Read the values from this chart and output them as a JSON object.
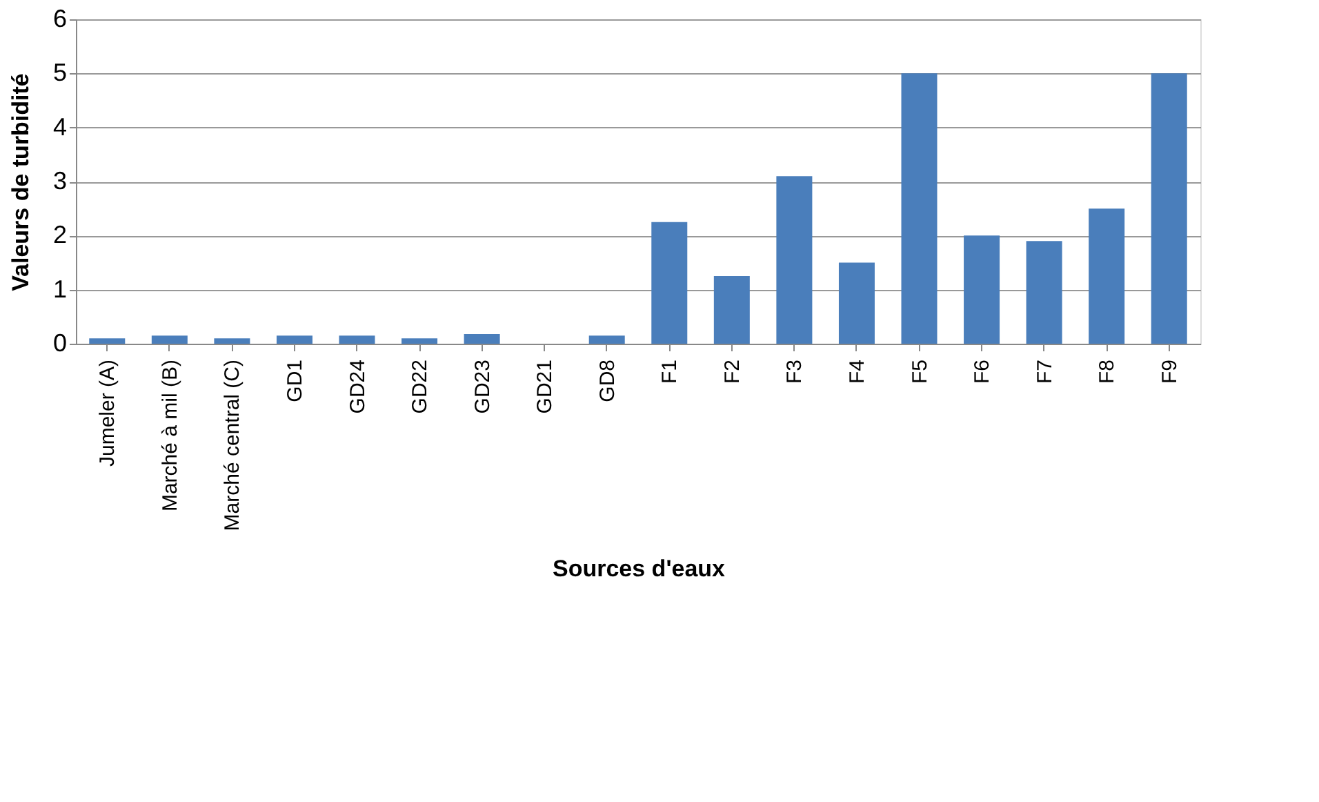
{
  "chart_data": {
    "type": "bar",
    "xlabel": "Sources d'eaux",
    "ylabel": "Valeurs de turbidité",
    "categories": [
      "Jumeler (A)",
      "Marché à mil (B)",
      "Marché central (C)",
      "GD1",
      "GD24",
      "GD22",
      "GD23",
      "GD21",
      "GD8",
      "F1",
      "F2",
      "F3",
      "F4",
      "F5",
      "F6",
      "F7",
      "F8",
      "F9"
    ],
    "values": [
      0.1,
      0.15,
      0.1,
      0.15,
      0.15,
      0.1,
      0.18,
      0,
      0.15,
      2.25,
      1.25,
      3.1,
      1.5,
      5,
      2,
      1.9,
      2.5,
      5
    ],
    "color": "#4a7ebb",
    "ylim": [
      0,
      6
    ],
    "yticks": [
      0,
      1,
      2,
      3,
      4,
      5,
      6
    ],
    "grid": "y"
  }
}
